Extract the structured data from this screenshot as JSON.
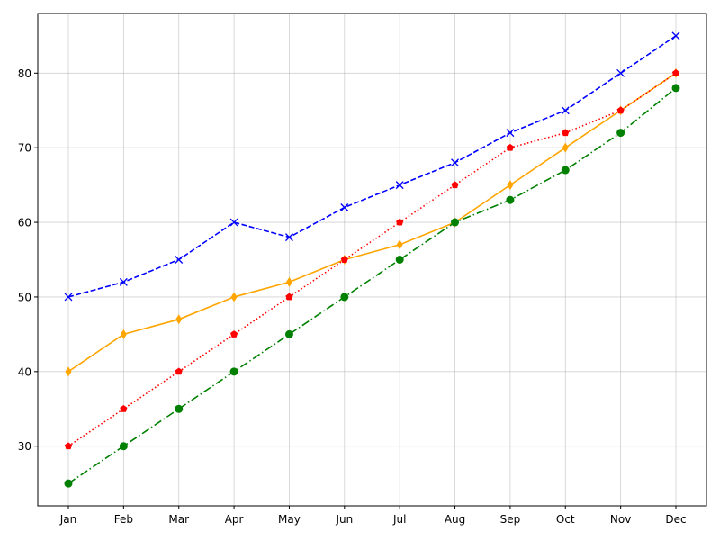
{
  "chart_data": {
    "type": "line",
    "title": "",
    "xlabel": "",
    "ylabel": "",
    "categories": [
      "Jan",
      "Feb",
      "Mar",
      "Apr",
      "May",
      "Jun",
      "Jul",
      "Aug",
      "Sep",
      "Oct",
      "Nov",
      "Dec"
    ],
    "ylim": [
      22,
      88
    ],
    "yticks": [
      30,
      40,
      50,
      60,
      70,
      80
    ],
    "grid": true,
    "legend": "none",
    "series": [
      {
        "color": "#0000ff",
        "linestyle": "dashed",
        "marker": "x",
        "values": [
          50,
          52,
          55,
          60,
          58,
          62,
          65,
          68,
          72,
          75,
          80,
          85
        ]
      },
      {
        "color": "#ffa500",
        "linestyle": "solid",
        "marker": "thin-diamond",
        "values": [
          40,
          45,
          47,
          50,
          52,
          55,
          57,
          60,
          65,
          70,
          75,
          80
        ]
      },
      {
        "color": "#ff0000",
        "linestyle": "dotted",
        "marker": "pentagon",
        "values": [
          30,
          35,
          40,
          45,
          50,
          55,
          60,
          65,
          70,
          72,
          75,
          80
        ]
      },
      {
        "color": "#008000",
        "linestyle": "dashdot",
        "marker": "circle",
        "values": [
          25,
          30,
          35,
          40,
          45,
          50,
          55,
          60,
          63,
          67,
          72,
          78
        ]
      }
    ]
  }
}
